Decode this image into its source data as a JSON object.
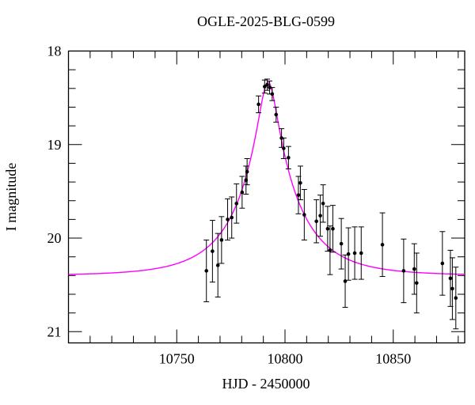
{
  "chart_data": {
    "type": "scatter",
    "title": "OGLE-2025-BLG-0599",
    "xlabel": "HJD - 2450000",
    "ylabel": "I magnitude",
    "grid": false,
    "legend": "none",
    "y_axis_inverted": true,
    "xlim": [
      10700,
      10883
    ],
    "ylim": [
      18.0,
      21.12
    ],
    "x_major_ticks": [
      10750,
      10800,
      10850
    ],
    "x_major_tick_labels": [
      "10750",
      "10800",
      "10850"
    ],
    "x_minor_tick_step": 10,
    "y_major_ticks": [
      18,
      19,
      20,
      21
    ],
    "y_major_tick_labels": [
      "18",
      "19",
      "20",
      "21"
    ],
    "y_minor_tick_step": 0.2,
    "colors": {
      "model_curve": "#ff00ff",
      "data_points": "#000000",
      "error_bars": "#000000",
      "axes": "#000000",
      "background": "#ffffff"
    },
    "model_curve": {
      "model": "paczynski-microlensing",
      "t0": 10792.2,
      "tE_days": 27.5,
      "u0": 0.15,
      "I_baseline": 20.4,
      "I_peak": 18.33
    },
    "points_columns": [
      "hjd_minus_2450000",
      "I_mag",
      "err_mag"
    ],
    "points": [
      [
        10763.7,
        20.35,
        0.33
      ],
      [
        10766.5,
        20.14,
        0.33
      ],
      [
        10769.0,
        20.29,
        0.34
      ],
      [
        10770.7,
        20.02,
        0.25
      ],
      [
        10773.5,
        19.8,
        0.22
      ],
      [
        10775.4,
        19.78,
        0.22
      ],
      [
        10777.6,
        19.63,
        0.21
      ],
      [
        10780.2,
        19.51,
        0.17
      ],
      [
        10782.0,
        19.38,
        0.15
      ],
      [
        10782.5,
        19.29,
        0.14
      ],
      [
        10787.8,
        18.57,
        0.09
      ],
      [
        10790.6,
        18.38,
        0.07
      ],
      [
        10791.8,
        18.36,
        0.06
      ],
      [
        10792.9,
        18.39,
        0.07
      ],
      [
        10794.1,
        18.46,
        0.07
      ],
      [
        10795.9,
        18.68,
        0.08
      ],
      [
        10798.4,
        18.93,
        0.1
      ],
      [
        10799.4,
        19.04,
        0.11
      ],
      [
        10801.6,
        19.14,
        0.12
      ],
      [
        10806.2,
        19.54,
        0.2
      ],
      [
        10807.1,
        19.41,
        0.18
      ],
      [
        10808.9,
        19.75,
        0.27
      ],
      [
        10814.5,
        19.82,
        0.23
      ],
      [
        10816.3,
        19.76,
        0.22
      ],
      [
        10817.6,
        19.63,
        0.2
      ],
      [
        10819.7,
        19.9,
        0.24
      ],
      [
        10820.8,
        20.13,
        0.26
      ],
      [
        10822.1,
        19.9,
        0.25
      ],
      [
        10826.0,
        20.06,
        0.27
      ],
      [
        10827.8,
        20.46,
        0.28
      ],
      [
        10829.3,
        20.17,
        0.28
      ],
      [
        10832.2,
        20.16,
        0.28
      ],
      [
        10835.2,
        20.16,
        0.28
      ],
      [
        10845.0,
        20.07,
        0.34
      ],
      [
        10854.8,
        20.35,
        0.34
      ],
      [
        10859.7,
        20.33,
        0.27
      ],
      [
        10860.8,
        20.48,
        0.32
      ],
      [
        10872.7,
        20.27,
        0.34
      ],
      [
        10876.4,
        20.43,
        0.3
      ],
      [
        10877.3,
        20.54,
        0.33
      ],
      [
        10878.9,
        20.64,
        0.33
      ]
    ]
  }
}
